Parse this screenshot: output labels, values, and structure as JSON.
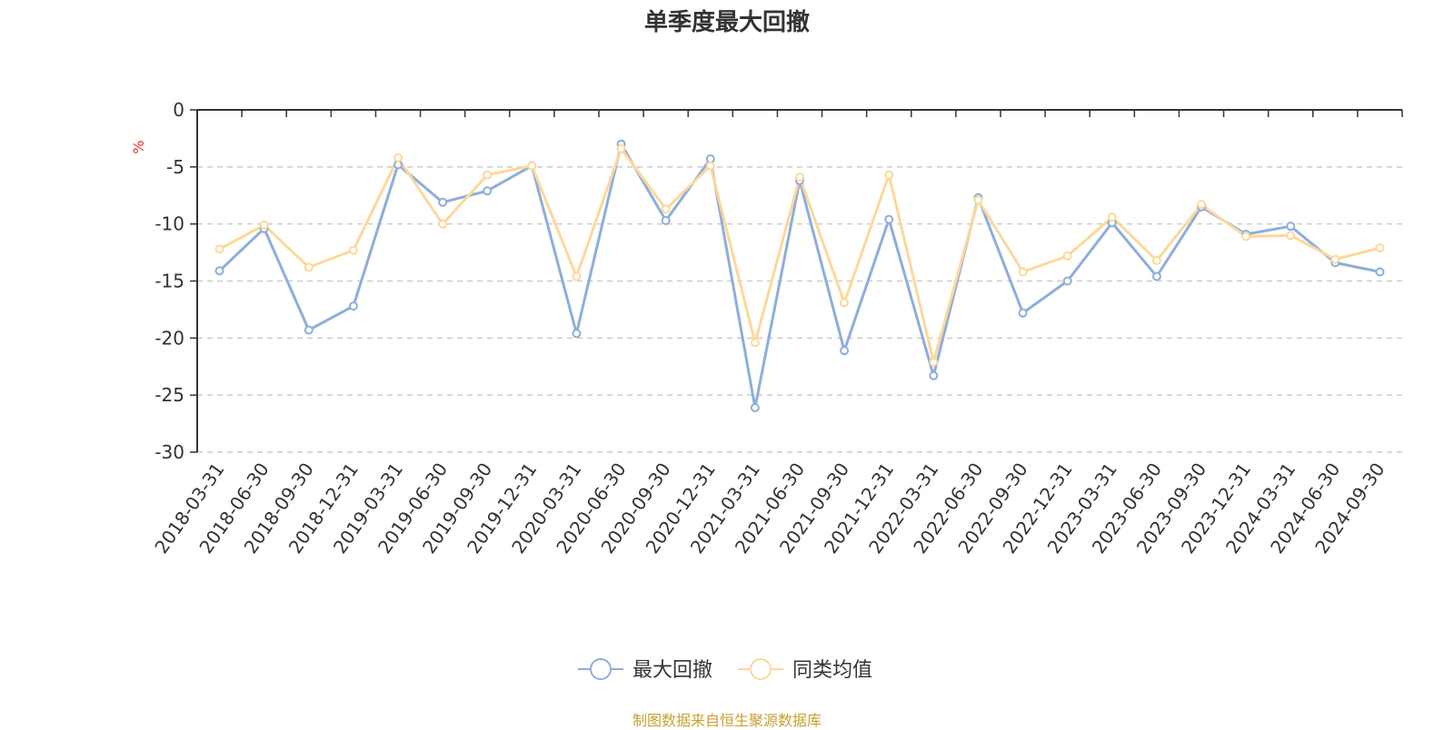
{
  "chart_data": {
    "type": "line",
    "title": "单季度最大回撤",
    "ylabel": "%",
    "ylim": [
      -30,
      0
    ],
    "yticks": [
      0,
      -5,
      -10,
      -15,
      -20,
      -25,
      -30
    ],
    "grid": true,
    "legend_position": "bottom",
    "x": [
      "2018-03-31",
      "2018-06-30",
      "2018-09-30",
      "2018-12-31",
      "2019-03-31",
      "2019-06-30",
      "2019-09-30",
      "2019-12-31",
      "2020-03-31",
      "2020-06-30",
      "2020-09-30",
      "2020-12-31",
      "2021-03-31",
      "2021-06-30",
      "2021-09-30",
      "2021-12-31",
      "2022-03-31",
      "2022-06-30",
      "2022-09-30",
      "2022-12-31",
      "2023-03-31",
      "2023-06-30",
      "2023-09-30",
      "2023-12-31",
      "2024-03-31",
      "2024-06-30",
      "2024-09-30"
    ],
    "series": [
      {
        "name": "最大回撤",
        "color": "#8eaedb",
        "values": [
          -14.1,
          -10.4,
          -19.3,
          -17.2,
          -4.8,
          -8.1,
          -7.1,
          -4.9,
          -19.6,
          -3.0,
          -9.7,
          -4.3,
          -26.1,
          -6.2,
          -21.1,
          -9.6,
          -23.3,
          -7.7,
          -17.8,
          -15.0,
          -9.9,
          -14.6,
          -8.5,
          -10.9,
          -10.2,
          -13.4,
          -14.2
        ]
      },
      {
        "name": "同类均值",
        "color": "#fdd89a",
        "values": [
          -12.2,
          -10.1,
          -13.8,
          -12.3,
          -4.2,
          -10.0,
          -5.7,
          -4.9,
          -14.6,
          -3.4,
          -8.7,
          -4.9,
          -20.4,
          -5.9,
          -16.9,
          -5.7,
          -22.1,
          -7.9,
          -14.2,
          -12.8,
          -9.4,
          -13.2,
          -8.3,
          -11.1,
          -11.0,
          -13.1,
          -12.1
        ]
      }
    ]
  },
  "footer": {
    "source": "制图数据来自恒生聚源数据库"
  },
  "colors": {
    "axis": "#333333",
    "grid": "#cccccc",
    "unit": "#e63232",
    "source": "#c8a032"
  }
}
